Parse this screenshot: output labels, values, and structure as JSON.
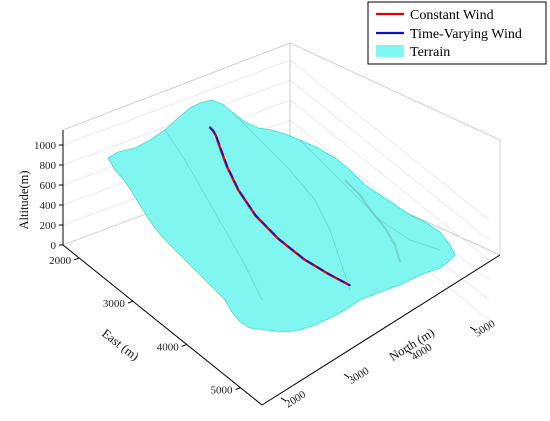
{
  "chart_data": {
    "type": "surface-3d",
    "xlabel": "North (m)",
    "ylabel": "East (m)",
    "zlabel": "Altitude(m)",
    "x_ticks": [
      2000,
      3000,
      4000,
      5000
    ],
    "y_ticks": [
      2000,
      3000,
      4000,
      5000
    ],
    "z_ticks": [
      0,
      200,
      400,
      600,
      800,
      1000
    ],
    "xlim": [
      1700,
      5300
    ],
    "ylim": [
      1700,
      5400
    ],
    "zlim": [
      0,
      1150
    ],
    "grid": true,
    "legend": {
      "position": "top-right",
      "entries": [
        {
          "label": "Constant Wind",
          "type": "line",
          "color": "#e00000"
        },
        {
          "label": "Time-Varying Wind",
          "type": "line",
          "color": "#1010d0"
        },
        {
          "label": "Terrain",
          "type": "patch",
          "color": "#7ff7f0"
        }
      ]
    },
    "series": [
      {
        "name": "Constant Wind",
        "color": "#e00000",
        "points": [
          {
            "north": 3350,
            "east": 2500,
            "alt": 1130
          },
          {
            "north": 3380,
            "east": 2520,
            "alt": 1100
          },
          {
            "north": 3400,
            "east": 2550,
            "alt": 1060
          },
          {
            "north": 3420,
            "east": 2600,
            "alt": 960
          },
          {
            "north": 3450,
            "east": 2700,
            "alt": 800
          },
          {
            "north": 3500,
            "east": 2850,
            "alt": 620
          },
          {
            "north": 3600,
            "east": 3050,
            "alt": 430
          },
          {
            "north": 3750,
            "east": 3300,
            "alt": 270
          },
          {
            "north": 3900,
            "east": 3600,
            "alt": 160
          },
          {
            "north": 4050,
            "east": 3900,
            "alt": 100
          },
          {
            "north": 4150,
            "east": 4150,
            "alt": 80
          }
        ]
      },
      {
        "name": "Time-Varying Wind",
        "color": "#1010d0",
        "points": [
          {
            "north": 3350,
            "east": 2500,
            "alt": 1130
          },
          {
            "north": 3385,
            "east": 2520,
            "alt": 1100
          },
          {
            "north": 3405,
            "east": 2550,
            "alt": 1060
          },
          {
            "north": 3425,
            "east": 2605,
            "alt": 960
          },
          {
            "north": 3455,
            "east": 2705,
            "alt": 800
          },
          {
            "north": 3505,
            "east": 2855,
            "alt": 620
          },
          {
            "north": 3605,
            "east": 3055,
            "alt": 430
          },
          {
            "north": 3755,
            "east": 3305,
            "alt": 270
          },
          {
            "north": 3905,
            "east": 3605,
            "alt": 160
          },
          {
            "north": 4055,
            "east": 3905,
            "alt": 100
          },
          {
            "north": 4155,
            "east": 4155,
            "alt": 80
          }
        ]
      }
    ]
  }
}
